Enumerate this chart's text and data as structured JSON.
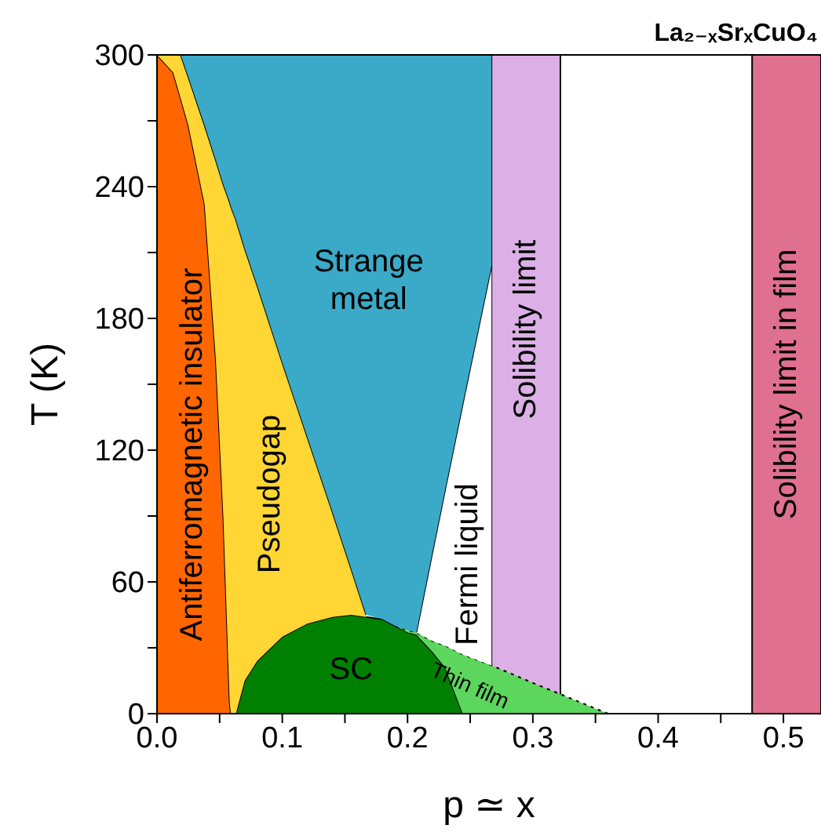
{
  "chart_data": {
    "type": "area",
    "stacked": true,
    "title": "La₂₋ₓSrₓCuO₄",
    "xlabel": "p ≃ x",
    "ylabel": "T (K)",
    "x": [
      0,
      0.013,
      0.019,
      0.025,
      0.038,
      0.047,
      0.053,
      0.058,
      0.059,
      0.063,
      0.07,
      0.08,
      0.1,
      0.12,
      0.14,
      0.155,
      0.167,
      0.18,
      0.19,
      0.2,
      0.207,
      0.22,
      0.23,
      0.244,
      0.267,
      0.267,
      0.3,
      0.33,
      0.36
    ],
    "series": [
      {
        "name": "Antiferromagnetic insulator",
        "color": "#ff6600",
        "values": [
          300,
          292,
          280,
          268,
          232,
          161,
          89,
          5,
          0,
          null,
          null,
          null,
          null,
          null,
          null,
          null,
          null,
          null,
          null,
          null,
          null,
          null,
          null,
          null,
          null,
          null,
          null,
          null,
          null
        ]
      },
      {
        "name": "SC",
        "color": "#008000",
        "values": [
          null,
          null,
          null,
          null,
          null,
          null,
          null,
          null,
          null,
          0,
          15,
          24,
          35,
          41,
          44,
          45,
          44,
          43,
          40,
          37,
          36,
          28,
          21,
          0,
          null,
          null,
          null,
          null,
          null
        ]
      },
      {
        "name": "Thin film",
        "color": "#5cd65c",
        "line_style": "dotted",
        "values": [
          null,
          null,
          null,
          null,
          null,
          null,
          null,
          null,
          null,
          null,
          null,
          null,
          null,
          null,
          null,
          null,
          null,
          null,
          0,
          1,
          1,
          5,
          10,
          27,
          22,
          22,
          14,
          7,
          0
        ]
      },
      {
        "name": "Pseudogap",
        "color": "#ffd633",
        "values": [
          0,
          8,
          20,
          22,
          36,
          91,
          152,
          228,
          231,
          225,
          197,
          171,
          125,
          85,
          48,
          21,
          1,
          null,
          null,
          null,
          null,
          null,
          null,
          null,
          null,
          null,
          null,
          null,
          null
        ]
      },
      {
        "name": "Fermi liquid",
        "color": "#ffffff",
        "values": [
          null,
          null,
          null,
          null,
          null,
          null,
          null,
          null,
          null,
          null,
          null,
          null,
          null,
          null,
          null,
          null,
          null,
          null,
          null,
          null,
          0,
          41,
          71,
          114,
          182,
          null,
          null,
          null,
          null
        ]
      },
      {
        "name": "Strange metal",
        "color": "#3aaac8",
        "values": [
          null,
          null,
          0,
          10,
          32,
          48,
          59,
          67,
          69,
          75,
          88,
          105,
          140,
          174,
          208,
          234,
          255,
          257,
          260,
          262,
          264,
          226,
          198,
          159,
          96,
          null,
          null,
          null,
          null
        ]
      }
    ],
    "bands": [
      {
        "axis": "x",
        "from": 0.267,
        "to": 0.322,
        "label": "Solibility limit",
        "color": "#dcb0e6"
      },
      {
        "axis": "x",
        "from": 0.475,
        "to": 0.53,
        "label": "Solibility limit in film",
        "color": "#e0708f"
      }
    ],
    "xlim": [
      0,
      0.53
    ],
    "ylim": [
      0,
      300
    ],
    "xticks": [
      {
        "value": 0,
        "label": "0.0"
      },
      {
        "value": 0.05,
        "label": null
      },
      {
        "value": 0.1,
        "label": "0.1"
      },
      {
        "value": 0.15,
        "label": null
      },
      {
        "value": 0.2,
        "label": "0.2"
      },
      {
        "value": 0.25,
        "label": null
      },
      {
        "value": 0.3,
        "label": "0.3"
      },
      {
        "value": 0.35,
        "label": null
      },
      {
        "value": 0.4,
        "label": "0.4"
      },
      {
        "value": 0.45,
        "label": null
      },
      {
        "value": 0.5,
        "label": "0.5"
      }
    ],
    "yticks": [
      0,
      {
        "value": 30,
        "label": null
      },
      60,
      {
        "value": 90,
        "label": null
      },
      120,
      {
        "value": 150,
        "label": null
      },
      180,
      {
        "value": 210,
        "label": null
      },
      240,
      {
        "value": 270,
        "label": null
      },
      300
    ],
    "grid": false,
    "legend": false
  }
}
